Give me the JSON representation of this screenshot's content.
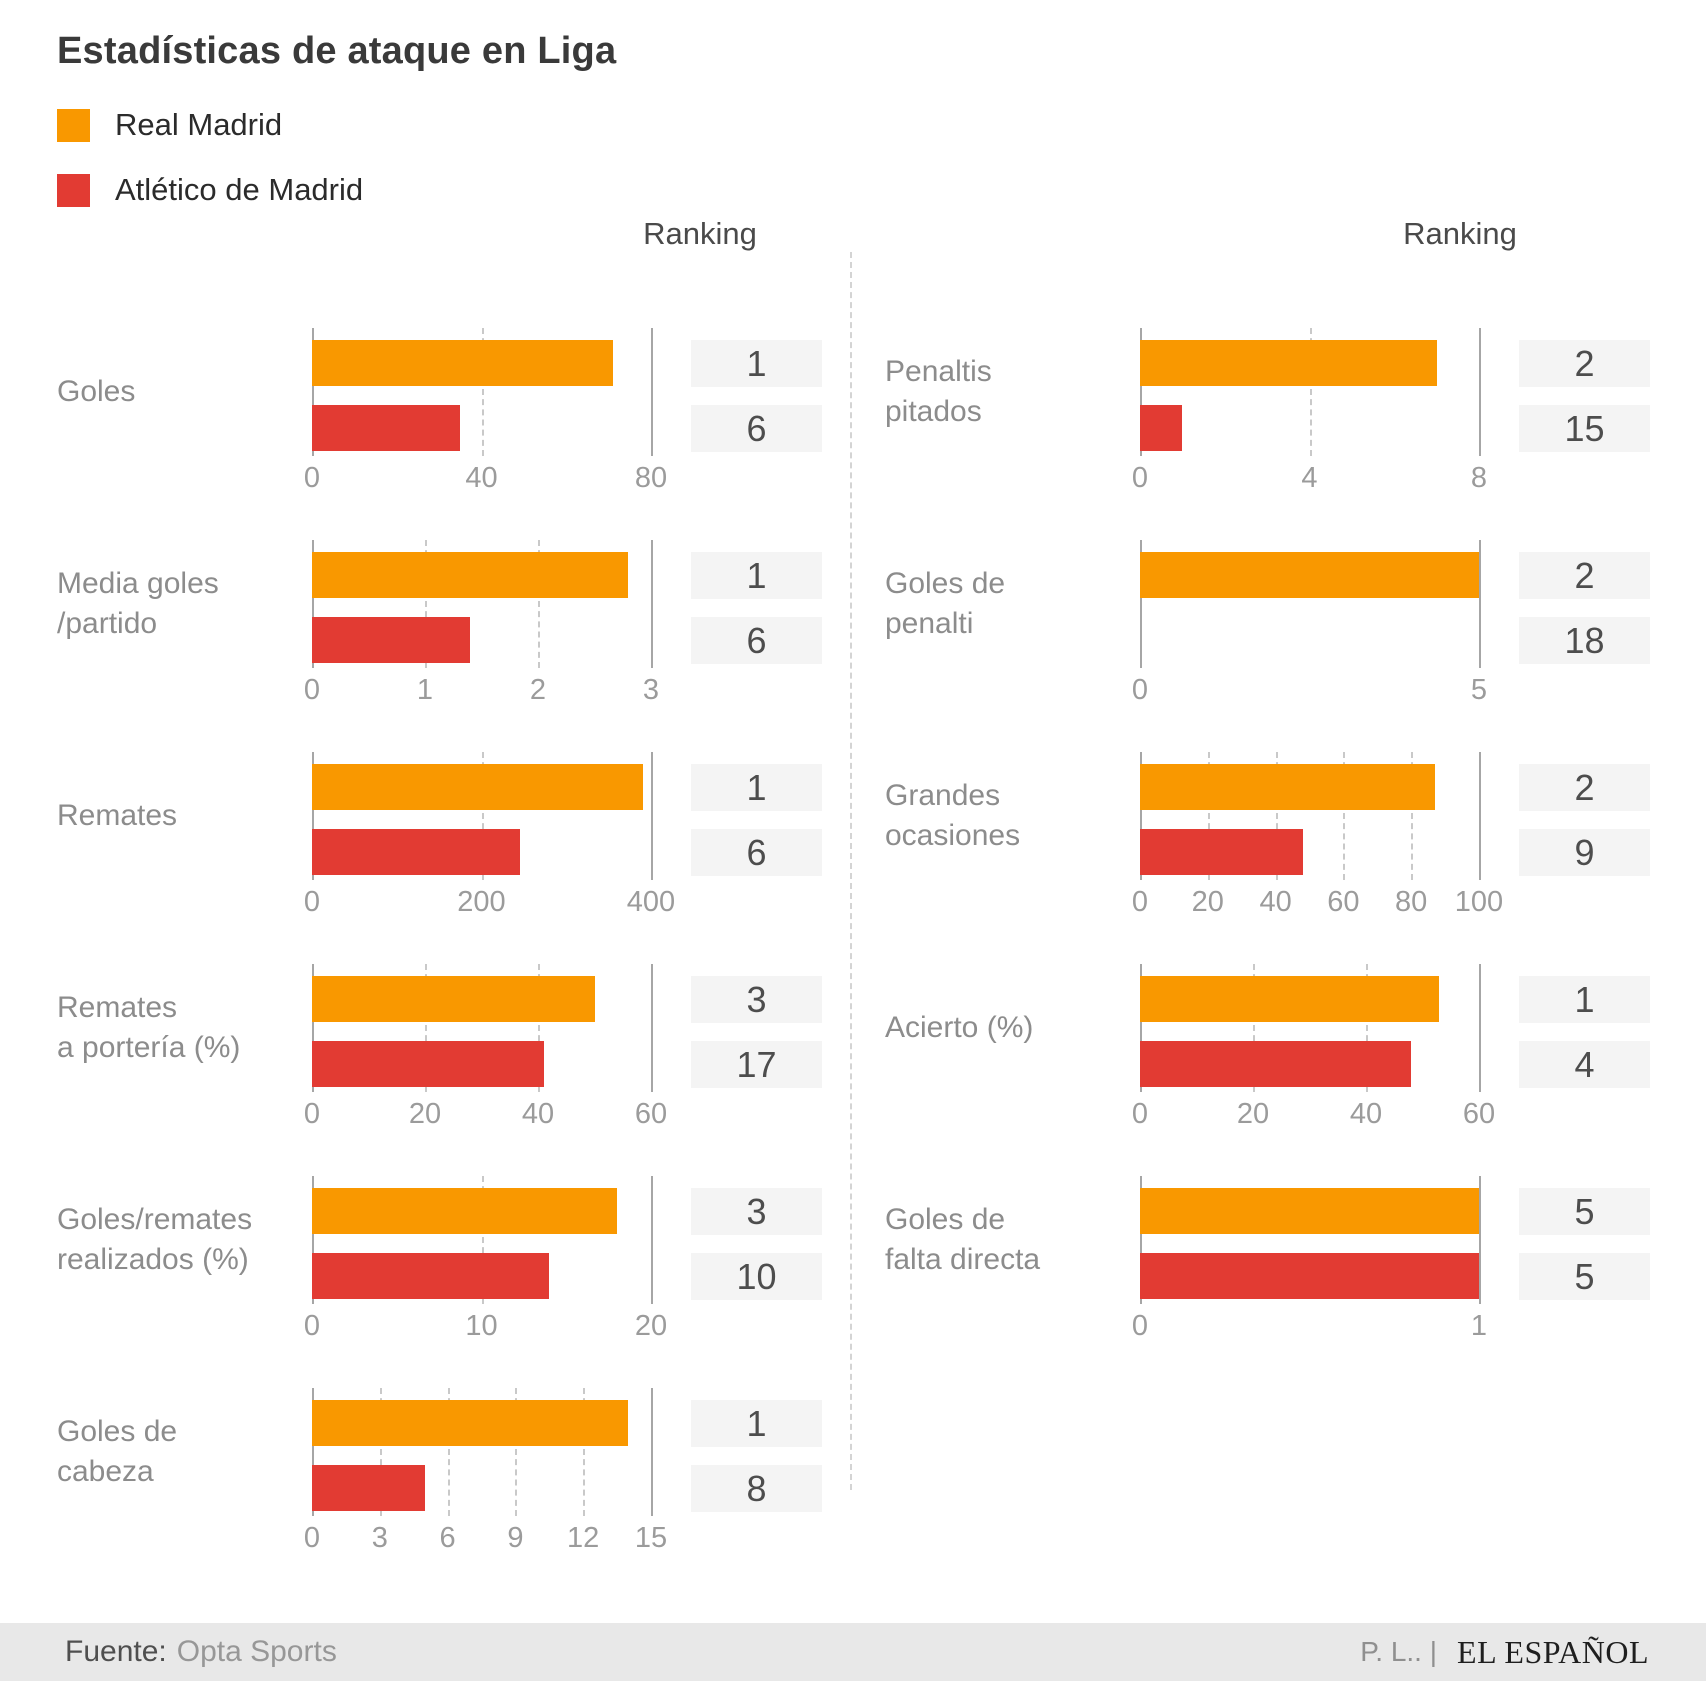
{
  "title": "Estadísticas de ataque en Liga",
  "legend": {
    "items": [
      {
        "label": "Real Madrid",
        "color": "#F99800"
      },
      {
        "label": "Atlético de Madrid",
        "color": "#E23B33"
      }
    ]
  },
  "ranking_header_left": "Ranking",
  "ranking_header_right": "Ranking",
  "footer": {
    "source_label": "Fuente:",
    "source_value": "Opta Sports",
    "author": "P. L.. |",
    "brand": "EL ESPAÑOL"
  },
  "colors": {
    "real_madrid": "#F99800",
    "atletico_de_madrid": "#E23B33",
    "rank_box_bg": "#F4F4F4",
    "grid_solid": "#A6A6A6",
    "grid_dashed": "#C9C9C9"
  },
  "chart_data": [
    {
      "type": "bar",
      "column": "left",
      "label": "Goles",
      "xlim": [
        0,
        80
      ],
      "ticks": [
        0,
        40,
        80
      ],
      "series": [
        {
          "name": "Real Madrid",
          "value": 71,
          "rank": 1
        },
        {
          "name": "Atlético de Madrid",
          "value": 35,
          "rank": 6
        }
      ]
    },
    {
      "type": "bar",
      "column": "left",
      "label": "Media goles\n/partido",
      "xlim": [
        0,
        3
      ],
      "ticks": [
        0,
        1,
        2,
        3
      ],
      "series": [
        {
          "name": "Real Madrid",
          "value": 2.8,
          "rank": 1
        },
        {
          "name": "Atlético de Madrid",
          "value": 1.4,
          "rank": 6
        }
      ]
    },
    {
      "type": "bar",
      "column": "left",
      "label": "Remates",
      "xlim": [
        0,
        400
      ],
      "ticks": [
        0,
        200,
        400
      ],
      "series": [
        {
          "name": "Real Madrid",
          "value": 390,
          "rank": 1
        },
        {
          "name": "Atlético de Madrid",
          "value": 246,
          "rank": 6
        }
      ]
    },
    {
      "type": "bar",
      "column": "left",
      "label": "Remates\na portería (%)",
      "xlim": [
        0,
        60
      ],
      "ticks": [
        0,
        20,
        40,
        60
      ],
      "series": [
        {
          "name": "Real Madrid",
          "value": 50,
          "rank": 3
        },
        {
          "name": "Atlético de Madrid",
          "value": 41,
          "rank": 17
        }
      ]
    },
    {
      "type": "bar",
      "column": "left",
      "label": "Goles/remates\nrealizados (%)",
      "xlim": [
        0,
        20
      ],
      "ticks": [
        0,
        10,
        20
      ],
      "series": [
        {
          "name": "Real Madrid",
          "value": 18,
          "rank": 3
        },
        {
          "name": "Atlético de Madrid",
          "value": 14,
          "rank": 10
        }
      ]
    },
    {
      "type": "bar",
      "column": "left",
      "label": "Goles de\ncabeza",
      "xlim": [
        0,
        15
      ],
      "ticks": [
        0,
        3,
        6,
        9,
        12,
        15
      ],
      "series": [
        {
          "name": "Real Madrid",
          "value": 14,
          "rank": 1
        },
        {
          "name": "Atlético de Madrid",
          "value": 5,
          "rank": 8
        }
      ]
    },
    {
      "type": "bar",
      "column": "right",
      "label": "Penaltis\npitados",
      "xlim": [
        0,
        8
      ],
      "ticks": [
        0,
        4,
        8
      ],
      "series": [
        {
          "name": "Real Madrid",
          "value": 7,
          "rank": 2
        },
        {
          "name": "Atlético de Madrid",
          "value": 1,
          "rank": 15
        }
      ]
    },
    {
      "type": "bar",
      "column": "right",
      "label": "Goles de\npenalti",
      "xlim": [
        0,
        5
      ],
      "ticks": [
        0,
        5
      ],
      "series": [
        {
          "name": "Real Madrid",
          "value": 5,
          "rank": 2
        },
        {
          "name": "Atlético de Madrid",
          "value": 0,
          "rank": 18
        }
      ]
    },
    {
      "type": "bar",
      "column": "right",
      "label": "Grandes\nocasiones",
      "xlim": [
        0,
        100
      ],
      "ticks": [
        0,
        20,
        40,
        60,
        80,
        100
      ],
      "series": [
        {
          "name": "Real Madrid",
          "value": 87,
          "rank": 2
        },
        {
          "name": "Atlético de Madrid",
          "value": 48,
          "rank": 9
        }
      ]
    },
    {
      "type": "bar",
      "column": "right",
      "label": "Acierto (%)",
      "xlim": [
        0,
        60
      ],
      "ticks": [
        0,
        20,
        40,
        60
      ],
      "series": [
        {
          "name": "Real Madrid",
          "value": 53,
          "rank": 1
        },
        {
          "name": "Atlético de Madrid",
          "value": 48,
          "rank": 4
        }
      ]
    },
    {
      "type": "bar",
      "column": "right",
      "label": "Goles de\nfalta directa",
      "xlim": [
        0,
        1
      ],
      "ticks": [
        0,
        1
      ],
      "series": [
        {
          "name": "Real Madrid",
          "value": 1,
          "rank": 5
        },
        {
          "name": "Atlético de Madrid",
          "value": 1,
          "rank": 5
        }
      ]
    }
  ]
}
